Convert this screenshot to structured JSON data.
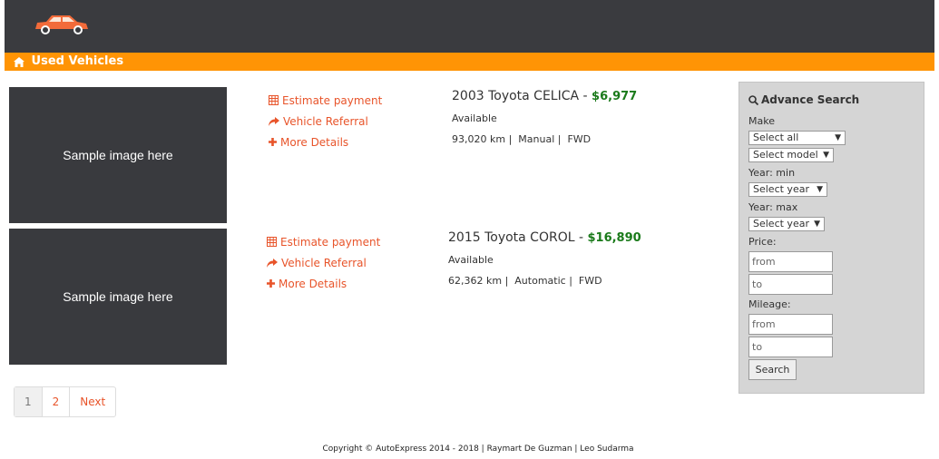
{
  "header": {
    "section_title": "Used Vehicles"
  },
  "listings": [
    {
      "image_text": "Sample image here",
      "actions": {
        "estimate": "Estimate payment",
        "referral": "Vehicle Referral",
        "details": "More Details"
      },
      "title": "2003 Toyota CELICA - ",
      "price": "$6,977",
      "status": "Available",
      "km": "93,020 km",
      "transmission": "Manual",
      "drive": "FWD"
    },
    {
      "image_text": "Sample image here",
      "actions": {
        "estimate": "Estimate payment",
        "referral": "Vehicle Referral",
        "details": "More Details"
      },
      "title": "2015 Toyota COROL - ",
      "price": "$16,890",
      "status": "Available",
      "km": "62,362 km",
      "transmission": "Automatic",
      "drive": "FWD"
    }
  ],
  "pagination": {
    "pages": [
      "1",
      "2"
    ],
    "next": "Next"
  },
  "search": {
    "heading": "Advance Search",
    "make_label": "Make",
    "make_select": "Select all",
    "model_select": "Select model",
    "year_min_label": "Year: min",
    "year_min_select": "Select year",
    "year_max_label": "Year: max",
    "year_max_select": "Select year",
    "price_label": "Price:",
    "price_from": "from",
    "price_to": "to",
    "mileage_label": "Mileage:",
    "mileage_from": "from",
    "mileage_to": "to",
    "search_button": "Search"
  },
  "footer": {
    "text": "Copyright © AutoExpress 2014 - 2018 | Raymart De Guzman | Leo Sudarma"
  },
  "colors": {
    "accent": "#ff9405",
    "link": "#e8542a",
    "price": "#1a7a1a",
    "header": "#3a3b3f",
    "placeholder": "#393a3e"
  }
}
